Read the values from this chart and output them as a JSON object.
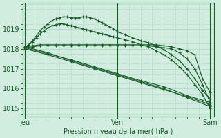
{
  "bg_color": "#d0ede0",
  "grid_color": "#b8d8c8",
  "line_color": "#1a5c2a",
  "title": "Pression niveau de la mer( hPa )",
  "xtick_labels": [
    "Jeu",
    "Ven",
    "Sam"
  ],
  "xtick_positions": [
    0,
    24,
    48
  ],
  "ytick_labels": [
    "1015",
    "1016",
    "1017",
    "1018",
    "1019"
  ],
  "ytick_positions": [
    1015,
    1016,
    1017,
    1018,
    1019
  ],
  "ylim": [
    1014.6,
    1020.3
  ],
  "xlim": [
    -0.5,
    49
  ],
  "vlines": [
    0,
    24,
    48
  ],
  "series": [
    {
      "x": [
        0,
        2,
        4,
        6,
        8,
        10,
        12,
        14,
        16,
        18,
        20,
        22,
        24,
        26,
        28,
        30,
        32,
        34,
        36,
        38,
        40,
        42,
        44,
        46,
        48
      ],
      "y": [
        1018.1,
        1018.15,
        1018.2,
        1018.2,
        1018.2,
        1018.2,
        1018.2,
        1018.2,
        1018.2,
        1018.2,
        1018.2,
        1018.2,
        1018.2,
        1018.2,
        1018.2,
        1018.2,
        1018.2,
        1018.2,
        1018.15,
        1018.1,
        1018.0,
        1017.9,
        1017.7,
        1016.5,
        1015.8
      ]
    },
    {
      "x": [
        0,
        2,
        4,
        6,
        8,
        10,
        12,
        14,
        16,
        18,
        20,
        22,
        24,
        26,
        28,
        30,
        32,
        34,
        36,
        38,
        40,
        42,
        44,
        46,
        48
      ],
      "y": [
        1018.05,
        1018.1,
        1018.15,
        1018.15,
        1018.15,
        1018.15,
        1018.15,
        1018.15,
        1018.15,
        1018.15,
        1018.15,
        1018.15,
        1018.15,
        1018.15,
        1018.15,
        1018.15,
        1018.15,
        1018.1,
        1018.05,
        1018.0,
        1017.8,
        1017.5,
        1017.0,
        1016.2,
        1015.3
      ]
    },
    {
      "x": [
        0,
        1,
        2,
        3,
        4,
        5,
        6,
        7,
        8,
        9,
        10,
        11,
        12,
        13,
        14,
        15,
        16,
        17,
        18,
        19,
        20,
        21,
        22,
        23,
        24,
        26,
        28,
        30,
        32,
        34,
        36,
        38,
        40,
        42,
        44,
        46,
        48
      ],
      "y": [
        1018.0,
        1018.15,
        1018.35,
        1018.55,
        1018.75,
        1018.9,
        1019.05,
        1019.15,
        1019.2,
        1019.25,
        1019.25,
        1019.2,
        1019.15,
        1019.1,
        1019.05,
        1019.0,
        1018.95,
        1018.9,
        1018.85,
        1018.8,
        1018.75,
        1018.7,
        1018.65,
        1018.6,
        1018.55,
        1018.45,
        1018.35,
        1018.2,
        1018.1,
        1017.9,
        1017.7,
        1017.45,
        1017.1,
        1016.7,
        1016.2,
        1015.7,
        1015.0
      ]
    },
    {
      "x": [
        0,
        1,
        2,
        3,
        4,
        5,
        6,
        7,
        8,
        9,
        10,
        11,
        12,
        13,
        14,
        15,
        16,
        17,
        18,
        19,
        20,
        21,
        22,
        23,
        24,
        26,
        28,
        30,
        32,
        34,
        36,
        38,
        40,
        42,
        44,
        46,
        48
      ],
      "y": [
        1018.05,
        1018.2,
        1018.4,
        1018.65,
        1018.9,
        1019.1,
        1019.25,
        1019.4,
        1019.5,
        1019.55,
        1019.6,
        1019.6,
        1019.55,
        1019.55,
        1019.55,
        1019.6,
        1019.6,
        1019.55,
        1019.5,
        1019.4,
        1019.3,
        1019.2,
        1019.1,
        1019.0,
        1018.85,
        1018.7,
        1018.55,
        1018.4,
        1018.3,
        1018.15,
        1017.95,
        1017.7,
        1017.4,
        1017.0,
        1016.5,
        1015.9,
        1015.5
      ]
    },
    {
      "x": [
        0,
        6,
        12,
        18,
        24,
        30,
        36,
        42,
        48
      ],
      "y": [
        1018.1,
        1017.8,
        1017.4,
        1017.05,
        1016.7,
        1016.35,
        1016.0,
        1015.55,
        1015.1
      ]
    },
    {
      "x": [
        0,
        6,
        12,
        18,
        24,
        30,
        36,
        42,
        48
      ],
      "y": [
        1018.05,
        1017.75,
        1017.45,
        1017.1,
        1016.75,
        1016.4,
        1016.1,
        1015.65,
        1015.3
      ]
    },
    {
      "x": [
        0,
        6,
        12,
        18,
        24,
        30,
        36,
        42,
        48
      ],
      "y": [
        1018.0,
        1017.7,
        1017.35,
        1017.0,
        1016.65,
        1016.3,
        1015.95,
        1015.6,
        1015.2
      ]
    }
  ]
}
